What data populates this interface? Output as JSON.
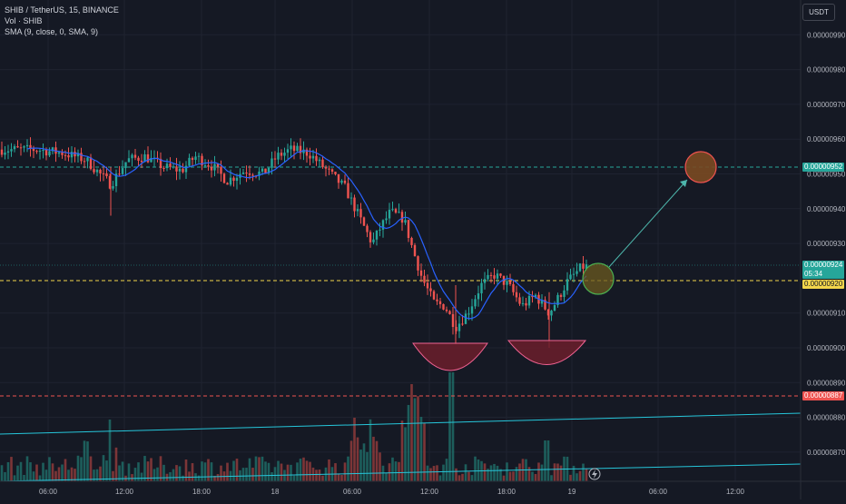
{
  "legend": {
    "symbol": "SHIB / TetherUS, 15, BINANCE",
    "volume": "Vol · SHIB",
    "sma": "SMA (9, close, 0, SMA, 9)"
  },
  "currency_button": "USDT",
  "price_axis": {
    "ticks": [
      "0.00000990",
      "0.00000980",
      "0.00000970",
      "0.00000960",
      "0.00000950",
      "0.00000940",
      "0.00000930",
      "0.00000910",
      "0.00000900",
      "0.00000890",
      "0.00000880",
      "0.00000870"
    ]
  },
  "time_axis": {
    "ticks": [
      "06:00",
      "12:00",
      "18:00",
      "18",
      "06:00",
      "12:00",
      "18:00",
      "19",
      "06:00",
      "12:00"
    ]
  },
  "price_tags": {
    "target": "0.00000952",
    "last_price": "0.00000924",
    "countdown": "05:34",
    "sma_value": "0.00000920",
    "stop": "0.00000887"
  },
  "colors": {
    "up": "#26a69a",
    "down": "#ef5350",
    "sma_line": "#2962ff",
    "target_line": "#26a69a",
    "entry_line": "#f2d54b",
    "stop_line": "#ef5350",
    "trendline": "#26c6da",
    "cup_fill": "#6b1f2b",
    "cup_stroke": "#f06292"
  },
  "chart_data": {
    "type": "candlestick",
    "x_range": [
      "03:00",
      "14:00 (next day)"
    ],
    "y_range": [
      8.64e-06,
      9.96e-06
    ],
    "levels": {
      "target": 9.52e-06,
      "last_price": 9.24e-06,
      "entry": 9.2e-06,
      "stop": 8.87e-06
    }
  }
}
